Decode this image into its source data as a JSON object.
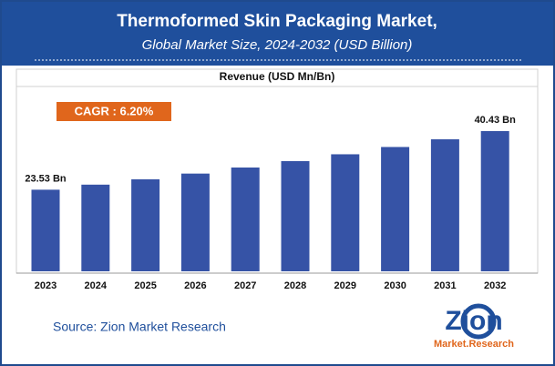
{
  "chart_data": {
    "type": "bar",
    "title": "Thermoformed Skin Packaging Market,",
    "subtitle": "Global Market Size, 2024-2032 (USD Billion)",
    "axis_label": "Revenue (USD Mn/Bn)",
    "annotation": "CAGR : 6.20%",
    "source": "Source: Zion Market Research",
    "logo": {
      "name": "Zion",
      "tagline": "Market.Research"
    },
    "categories": [
      "2023",
      "2024",
      "2025",
      "2026",
      "2027",
      "2028",
      "2029",
      "2030",
      "2031",
      "2032"
    ],
    "values": [
      23.53,
      24.99,
      26.54,
      28.18,
      29.93,
      31.78,
      33.75,
      35.85,
      38.07,
      40.43
    ],
    "value_labels": [
      "23.53 Bn",
      null,
      null,
      null,
      null,
      null,
      null,
      null,
      null,
      "40.43 Bn"
    ],
    "color": "#3653a6"
  }
}
